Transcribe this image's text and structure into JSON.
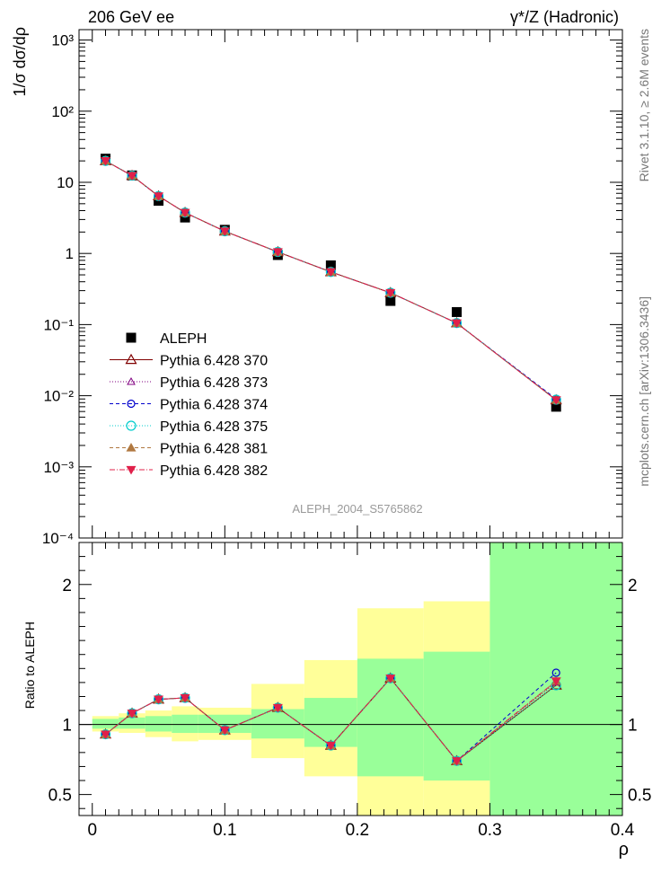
{
  "header": {
    "energy_label": "206 GeV ee",
    "process_label": "γ*/Z (Hadronic)",
    "rivet_label": "Rivet 3.1.10, ≥ 2.6M events",
    "source_label": "mcplots.cern.ch [arXiv:1306.3436]",
    "analysis_label": "ALEPH_2004_S5765862"
  },
  "chart_data": [
    {
      "type": "scatter",
      "panel": "main",
      "ylabel": "1/σ  dσ/dρ",
      "xlim": [
        -0.01,
        0.4
      ],
      "ylim": [
        0.0001,
        1400
      ],
      "yscale": "log",
      "ytick_labels": [
        "10⁻⁴",
        "10⁻³",
        "10⁻²",
        "10⁻¹",
        "1",
        "10",
        "10²",
        "10³"
      ],
      "legend_position": "bottom-left",
      "x": [
        0.01,
        0.03,
        0.05,
        0.07,
        0.1,
        0.14,
        0.18,
        0.225,
        0.275,
        0.35
      ],
      "series": [
        {
          "name": "ALEPH",
          "color": "#000000",
          "marker": "square",
          "values": [
            21.5,
            12.5,
            5.5,
            3.2,
            2.15,
            0.95,
            0.68,
            0.215,
            0.15,
            0.007
          ]
        },
        {
          "name": "Pythia 6.428 370",
          "color": "#800000",
          "marker": "triangle-open",
          "dash": "",
          "values": [
            20.0,
            12.4,
            6.4,
            3.75,
            2.05,
            1.05,
            0.55,
            0.28,
            0.105,
            0.0087
          ]
        },
        {
          "name": "Pythia 6.428 373",
          "color": "#800080",
          "marker": "triangle-open-small",
          "dash": "1,2",
          "values": [
            20.0,
            12.4,
            6.4,
            3.75,
            2.05,
            1.05,
            0.55,
            0.28,
            0.105,
            0.0088
          ]
        },
        {
          "name": "Pythia 6.428 374",
          "color": "#0000cc",
          "marker": "circle-open",
          "dash": "4,3",
          "values": [
            20.0,
            12.4,
            6.4,
            3.75,
            2.05,
            1.05,
            0.55,
            0.28,
            0.105,
            0.009
          ]
        },
        {
          "name": "Pythia 6.428 375",
          "color": "#00cccc",
          "marker": "circle-open-large",
          "dash": "1,2",
          "values": [
            20.0,
            12.4,
            6.4,
            3.75,
            2.05,
            1.05,
            0.55,
            0.28,
            0.105,
            0.0088
          ]
        },
        {
          "name": "Pythia 6.428 381",
          "color": "#b07840",
          "marker": "triangle-filled",
          "dash": "4,3",
          "values": [
            20.0,
            12.4,
            6.4,
            3.75,
            2.05,
            1.05,
            0.55,
            0.28,
            0.105,
            0.0087
          ]
        },
        {
          "name": "Pythia 6.428 382",
          "color": "#e0204a",
          "marker": "triangle-down-filled",
          "dash": "6,2,1,2",
          "values": [
            20.0,
            12.4,
            6.4,
            3.75,
            2.05,
            1.05,
            0.55,
            0.28,
            0.105,
            0.0087
          ]
        }
      ]
    },
    {
      "type": "scatter",
      "panel": "ratio",
      "xlabel": "ρ",
      "ylabel": "Ratio to ALEPH",
      "xlim": [
        -0.01,
        0.4
      ],
      "ylim": [
        0.35,
        2.3
      ],
      "xticks": [
        0,
        0.1,
        0.2,
        0.3,
        0.4
      ],
      "xtick_labels": [
        "0",
        "0.1",
        "0.2",
        "0.3",
        "0.4"
      ],
      "yticks": [
        0.5,
        1,
        2
      ],
      "ytick_labels": [
        "0.5",
        "1",
        "2"
      ],
      "bands": [
        {
          "x0": 0.0,
          "x1": 0.02,
          "inner": [
            0.97,
            1.04
          ],
          "outer": [
            0.95,
            1.06
          ]
        },
        {
          "x0": 0.02,
          "x1": 0.04,
          "inner": [
            0.97,
            1.05
          ],
          "outer": [
            0.94,
            1.08
          ]
        },
        {
          "x0": 0.04,
          "x1": 0.06,
          "inner": [
            0.95,
            1.06
          ],
          "outer": [
            0.91,
            1.1
          ]
        },
        {
          "x0": 0.06,
          "x1": 0.08,
          "inner": [
            0.94,
            1.07
          ],
          "outer": [
            0.88,
            1.13
          ]
        },
        {
          "x0": 0.08,
          "x1": 0.12,
          "inner": [
            0.94,
            1.07
          ],
          "outer": [
            0.89,
            1.12
          ]
        },
        {
          "x0": 0.12,
          "x1": 0.16,
          "inner": [
            0.9,
            1.11
          ],
          "outer": [
            0.76,
            1.29
          ]
        },
        {
          "x0": 0.16,
          "x1": 0.2,
          "inner": [
            0.84,
            1.19
          ],
          "outer": [
            0.63,
            1.46
          ]
        },
        {
          "x0": 0.2,
          "x1": 0.25,
          "inner": [
            0.63,
            1.47
          ],
          "outer": [
            0.35,
            1.83
          ]
        },
        {
          "x0": 0.25,
          "x1": 0.3,
          "inner": [
            0.6,
            1.52
          ],
          "outer": [
            0.35,
            1.88
          ]
        },
        {
          "x0": 0.3,
          "x1": 0.4,
          "inner": [
            0.35,
            2.3
          ],
          "outer": [
            0.35,
            2.3
          ]
        }
      ],
      "x": [
        0.01,
        0.03,
        0.05,
        0.07,
        0.1,
        0.14,
        0.18,
        0.225,
        0.275,
        0.35
      ],
      "series": [
        {
          "name": "Pythia 6.428 370",
          "values": [
            0.93,
            1.08,
            1.18,
            1.19,
            0.96,
            1.12,
            0.85,
            1.33,
            0.74,
            1.28
          ]
        },
        {
          "name": "Pythia 6.428 373",
          "values": [
            0.93,
            1.08,
            1.18,
            1.19,
            0.96,
            1.12,
            0.85,
            1.33,
            0.74,
            1.3
          ]
        },
        {
          "name": "Pythia 6.428 374",
          "values": [
            0.93,
            1.08,
            1.18,
            1.19,
            0.96,
            1.12,
            0.85,
            1.33,
            0.74,
            1.37
          ]
        },
        {
          "name": "Pythia 6.428 375",
          "values": [
            0.93,
            1.08,
            1.18,
            1.19,
            0.96,
            1.12,
            0.85,
            1.33,
            0.74,
            1.28
          ]
        },
        {
          "name": "Pythia 6.428 381",
          "values": [
            0.93,
            1.08,
            1.18,
            1.19,
            0.96,
            1.12,
            0.85,
            1.33,
            0.74,
            1.31
          ]
        },
        {
          "name": "Pythia 6.428 382",
          "values": [
            0.93,
            1.08,
            1.18,
            1.19,
            0.96,
            1.12,
            0.85,
            1.33,
            0.74,
            1.31
          ]
        }
      ],
      "colors": {
        "inner_band": "#99ff99",
        "outer_band": "#ffff99"
      }
    }
  ]
}
